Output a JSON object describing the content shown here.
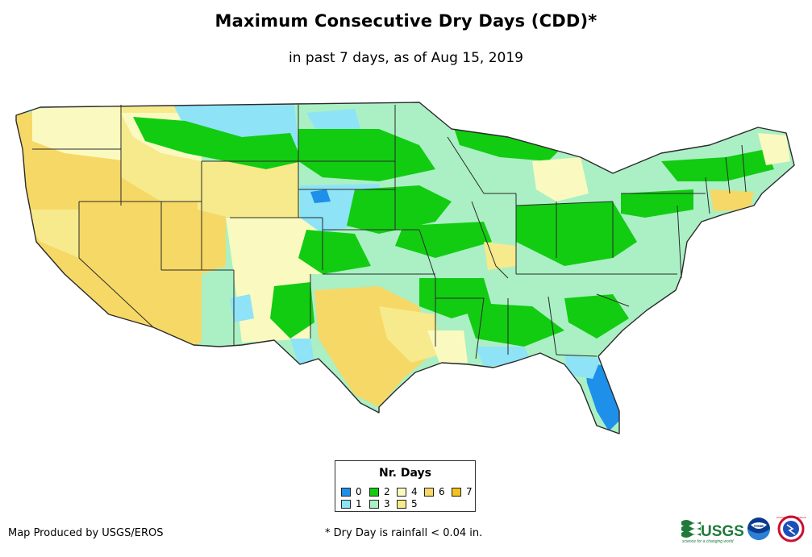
{
  "title": "Maximum Consecutive Dry Days (CDD)*",
  "subtitle": "in past 7 days, as of Aug 15, 2019",
  "legend": {
    "title": "Nr. Days",
    "items": [
      {
        "label": "0",
        "color": "#1e90ea"
      },
      {
        "label": "1",
        "color": "#8ee3f7"
      },
      {
        "label": "2",
        "color": "#12cc12"
      },
      {
        "label": "3",
        "color": "#aaf0c4"
      },
      {
        "label": "4",
        "color": "#fafac0"
      },
      {
        "label": "5",
        "color": "#f6ea8c"
      },
      {
        "label": "6",
        "color": "#f6d866"
      },
      {
        "label": "7",
        "color": "#f3c21c"
      }
    ]
  },
  "credit": "Map Produced by USGS/EROS",
  "footnote": "* Dry Day is rainfall < 0.04 in.",
  "logos": {
    "usgs": {
      "name": "usgs-logo",
      "text": "USGS",
      "tagline": "science for a changing world"
    },
    "noaa": {
      "name": "noaa-logo",
      "text": "noaa"
    },
    "nws": {
      "name": "nws-logo",
      "text": "NATIONAL WEATHER SERVICE"
    }
  }
}
